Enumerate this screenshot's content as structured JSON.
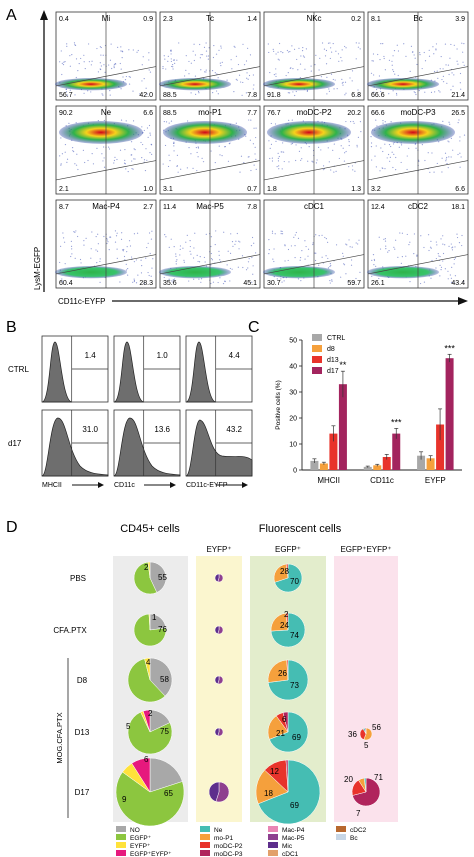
{
  "panel_letters": [
    "A",
    "B",
    "C",
    "D"
  ],
  "panelA": {
    "y_axis_label": "LysM-EGFP",
    "x_axis_label": "CD11c-EYFP",
    "plots": [
      {
        "title": "Mi",
        "ul": "0.4",
        "ur": "0.9",
        "ll": "56.7",
        "lr": "42.0"
      },
      {
        "title": "Tc",
        "ul": "2.3",
        "ur": "1.4",
        "ll": "88.5",
        "lr": "7.8"
      },
      {
        "title": "NKc",
        "ul": "",
        "ur": "0.2",
        "ll": "91.8",
        "lr": "6.8"
      },
      {
        "title": "Bc",
        "ul": "8.1",
        "ur": "3.9",
        "ll": "66.6",
        "lr": "21.4"
      },
      {
        "title": "Ne",
        "ul": "90.2",
        "ur": "6.6",
        "ll": "2.1",
        "lr": "1.0"
      },
      {
        "title": "mo-P1",
        "ul": "88.5",
        "ur": "7.7",
        "ll": "3.1",
        "lr": "0.7"
      },
      {
        "title": "moDC-P2",
        "ul": "76.7",
        "ur": "20.2",
        "ll": "1.8",
        "lr": "1.3"
      },
      {
        "title": "moDC-P3",
        "ul": "66.6",
        "ur": "26.5",
        "ll": "3.2",
        "lr": "6.6"
      },
      {
        "title": "Mac-P4",
        "ul": "8.7",
        "ur": "2.7",
        "ll": "60.4",
        "lr": "28.3"
      },
      {
        "title": "Mac-P5",
        "ul": "11.4",
        "ur": "7.8",
        "ll": "35.6",
        "lr": "45.1"
      },
      {
        "title": "cDC1",
        "ul": "",
        "ur": "",
        "ll": "30.7",
        "lr": "59.7"
      },
      {
        "title": "cDC2",
        "ul": "12.4",
        "ur": "18.1",
        "ll": "26.1",
        "lr": "43.4"
      }
    ]
  },
  "panelB": {
    "rows": [
      "CTRL",
      "d17"
    ],
    "x_labels": [
      "MHCII",
      "CD11c",
      "CD11c-EYFP"
    ],
    "values": [
      [
        "1.4",
        "1.0",
        "4.4"
      ],
      [
        "31.0",
        "13.6",
        "43.2"
      ]
    ]
  },
  "chart_data": {
    "type": "bar",
    "categories": [
      "MHCII",
      "CD11c",
      "EYFP"
    ],
    "ylabel": "Positive cells (%)",
    "ylim": [
      0,
      50
    ],
    "yticks": [
      "0",
      "10",
      "20",
      "30",
      "40",
      "50"
    ],
    "series": [
      {
        "name": "CTRL",
        "color": "#a8a8a8",
        "values": [
          3.5,
          1.2,
          5.5
        ],
        "errors": [
          0.8,
          0.3,
          1.5
        ]
      },
      {
        "name": "d8",
        "color": "#f5a03c",
        "values": [
          2.5,
          1.8,
          4.5
        ],
        "errors": [
          0.5,
          0.4,
          1.0
        ]
      },
      {
        "name": "d13",
        "color": "#e8332b",
        "values": [
          14,
          5,
          17.5
        ],
        "errors": [
          3,
          1,
          6
        ]
      },
      {
        "name": "d17",
        "color": "#a3245e",
        "values": [
          33,
          14,
          43
        ],
        "errors": [
          5,
          2,
          1.5
        ]
      }
    ],
    "significance": [
      "**",
      "***",
      "***"
    ]
  },
  "panelD": {
    "col_titles": [
      "CD45+ cells",
      "Fluorescent cells"
    ],
    "sub_titles": [
      "EYFP⁺",
      "EGFP⁺",
      "EGFP⁺EYFP⁺"
    ],
    "row_labels": [
      "PBS",
      "CFA.PTX",
      "D8",
      "D13",
      "D17"
    ],
    "group_label": "MOG.CFA.PTX",
    "cd45_labels": [
      [
        "2",
        "55"
      ],
      [
        "1",
        "76"
      ],
      [
        "4",
        "58"
      ],
      [
        "2",
        "5",
        "75"
      ],
      [
        "6",
        "9",
        "65"
      ]
    ],
    "egfp_labels": [
      [
        "28",
        "70"
      ],
      [
        "2",
        "24",
        "74"
      ],
      [
        "26",
        "73"
      ],
      [
        "6",
        "21",
        "69"
      ],
      [
        "12",
        "18",
        "69"
      ]
    ],
    "dp_labels": [
      [
        "56",
        "36",
        "5"
      ],
      [
        "20",
        "71",
        "7"
      ]
    ],
    "legend1": [
      "NO",
      "EGFP⁺",
      "EYFP⁺",
      "EGFP⁺EYFP⁺"
    ],
    "legend2": [
      {
        "name": "Ne",
        "color": "#45bdb3"
      },
      {
        "name": "mo-P1",
        "color": "#f5a03c"
      },
      {
        "name": "moDC-P2",
        "color": "#e8332b"
      },
      {
        "name": "moDC-P3",
        "color": "#b0245c"
      },
      {
        "name": "Mac-P4",
        "color": "#e985b4"
      },
      {
        "name": "Mac-P5",
        "color": "#8e3f8f"
      },
      {
        "name": "Mic",
        "color": "#5d2e8c"
      },
      {
        "name": "cDC1",
        "color": "#e2a06a"
      },
      {
        "name": "cDC2",
        "color": "#b8682e"
      },
      {
        "name": "Bc",
        "color": "#c7d6e6"
      }
    ],
    "legend1_colors": [
      "#a8a8a8",
      "#8cc63f",
      "#ffe23b",
      "#e6197d"
    ]
  }
}
